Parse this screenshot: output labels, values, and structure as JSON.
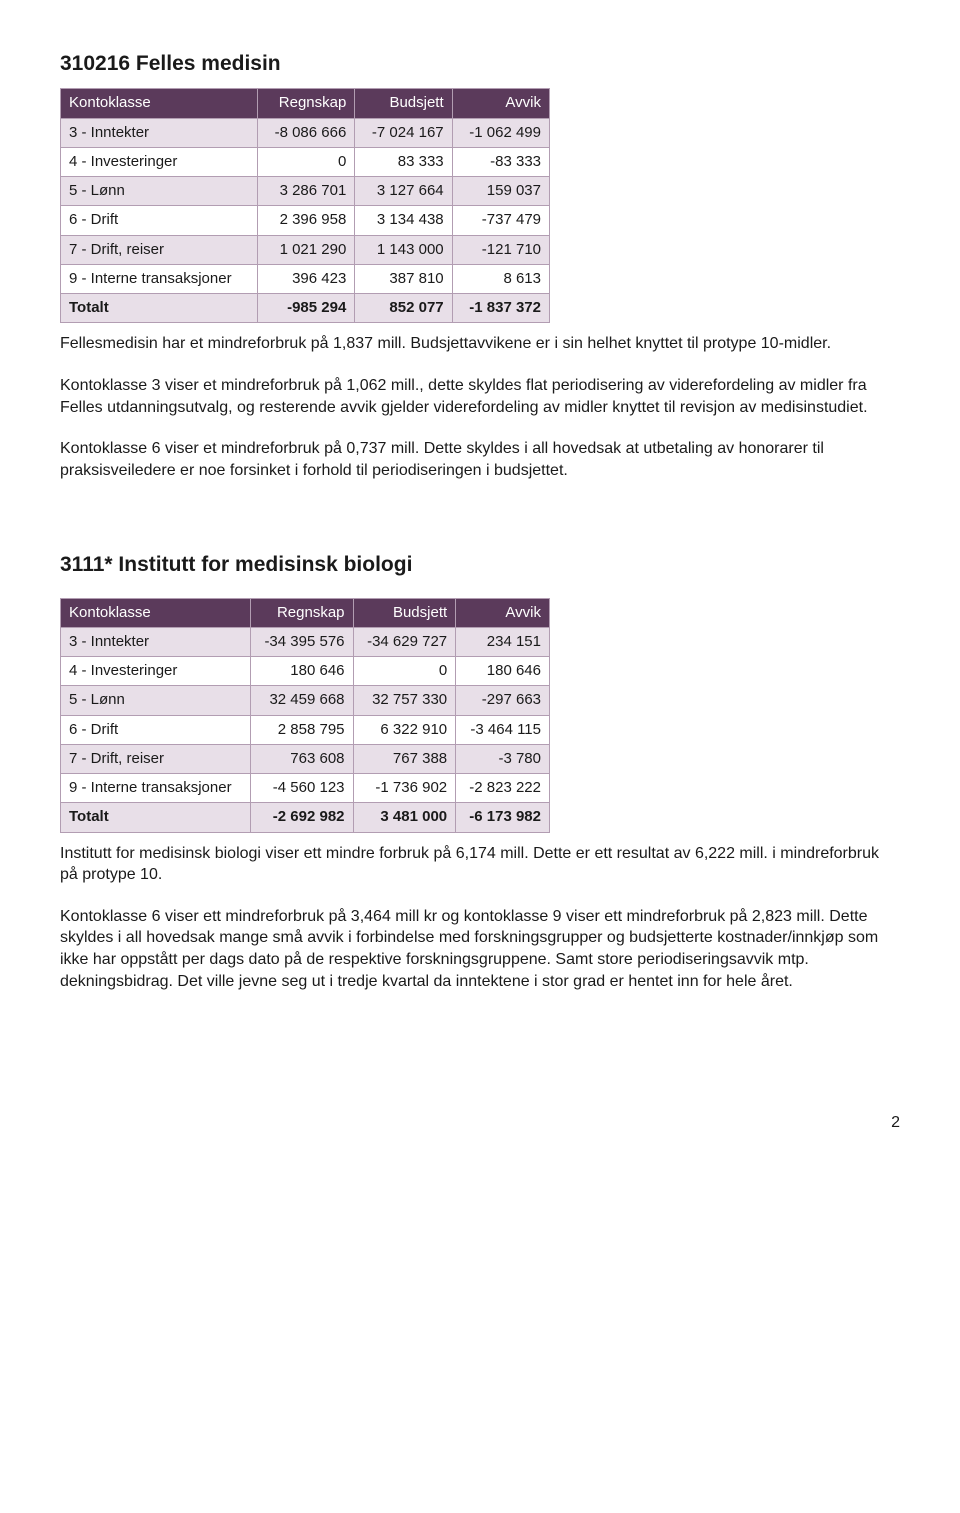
{
  "section1": {
    "title": "310216 Felles medisin",
    "table": {
      "header_bg": "#5b3a5b",
      "header_fg": "#ffffff",
      "shade_bg": "#e8dfe8",
      "border_color": "#b29db2",
      "columns": [
        "Kontoklasse",
        "Regnskap",
        "Budsjett",
        "Avvik"
      ],
      "rows": [
        {
          "label": "3 - Inntekter",
          "regnskap": "-8 086 666",
          "budsjett": "-7 024 167",
          "avvik": "-1 062 499",
          "shade": true
        },
        {
          "label": "4 - Investeringer",
          "regnskap": "0",
          "budsjett": "83 333",
          "avvik": "-83 333",
          "shade": false
        },
        {
          "label": "5 - Lønn",
          "regnskap": "3 286 701",
          "budsjett": "3 127 664",
          "avvik": "159 037",
          "shade": true
        },
        {
          "label": "6 - Drift",
          "regnskap": "2 396 958",
          "budsjett": "3 134 438",
          "avvik": "-737 479",
          "shade": false
        },
        {
          "label": "7 - Drift, reiser",
          "regnskap": "1 021 290",
          "budsjett": "1 143 000",
          "avvik": "-121 710",
          "shade": true
        },
        {
          "label": "9 - Interne transaksjoner",
          "regnskap": "396 423",
          "budsjett": "387 810",
          "avvik": "8 613",
          "shade": false
        },
        {
          "label": "Totalt",
          "regnskap": "-985 294",
          "budsjett": "852 077",
          "avvik": "-1 837 372",
          "shade": true,
          "total": true
        }
      ]
    },
    "text1": "Fellesmedisin har et mindreforbruk på 1,837 mill. Budsjettavvikene er i sin helhet knyttet til protype 10-midler.",
    "text2": "Kontoklasse 3 viser et mindreforbruk på 1,062 mill., dette skyldes flat periodisering av viderefordeling av midler fra Felles utdanningsutvalg, og resterende avvik gjelder viderefordeling av midler knyttet til revisjon av medisinstudiet.",
    "text3": "Kontoklasse 6 viser et mindreforbruk på 0,737 mill. Dette skyldes i all hovedsak at utbetaling av honorarer til praksisveiledere er noe forsinket i forhold til periodiseringen i budsjettet."
  },
  "section2": {
    "title": "3111* Institutt for medisinsk biologi",
    "table": {
      "header_bg": "#5b3a5b",
      "header_fg": "#ffffff",
      "shade_bg": "#e8dfe8",
      "border_color": "#b29db2",
      "columns": [
        "Kontoklasse",
        "Regnskap",
        "Budsjett",
        "Avvik"
      ],
      "rows": [
        {
          "label": "3 - Inntekter",
          "regnskap": "-34 395 576",
          "budsjett": "-34 629 727",
          "avvik": "234 151",
          "shade": true
        },
        {
          "label": "4 - Investeringer",
          "regnskap": "180 646",
          "budsjett": "0",
          "avvik": "180 646",
          "shade": false
        },
        {
          "label": "5 - Lønn",
          "regnskap": "32 459 668",
          "budsjett": "32 757 330",
          "avvik": "-297 663",
          "shade": true
        },
        {
          "label": "6 - Drift",
          "regnskap": "2 858 795",
          "budsjett": "6 322 910",
          "avvik": "-3 464 115",
          "shade": false
        },
        {
          "label": "7 - Drift, reiser",
          "regnskap": "763 608",
          "budsjett": "767 388",
          "avvik": "-3 780",
          "shade": true
        },
        {
          "label": "9 - Interne transaksjoner",
          "regnskap": "-4 560 123",
          "budsjett": "-1 736 902",
          "avvik": "-2 823 222",
          "shade": false
        },
        {
          "label": "Totalt",
          "regnskap": "-2 692 982",
          "budsjett": "3 481 000",
          "avvik": "-6 173 982",
          "shade": true,
          "total": true
        }
      ]
    },
    "text1": "Institutt for medisinsk biologi viser ett mindre forbruk på 6,174 mill. Dette er ett resultat av 6,222 mill. i mindreforbruk på protype 10.",
    "text2": "Kontoklasse 6 viser ett mindreforbruk på 3,464 mill kr og kontoklasse 9 viser ett mindreforbruk på 2,823 mill. Dette skyldes i all hovedsak mange små avvik i forbindelse med forskningsgrupper og budsjetterte kostnader/innkjøp som ikke har oppstått per dags dato på de respektive forskningsgruppene. Samt store periodiseringsavvik mtp. dekningsbidrag. Det ville jevne seg ut i tredje kvartal da inntektene i stor grad er hentet inn for hele året."
  },
  "pageNumber": "2"
}
